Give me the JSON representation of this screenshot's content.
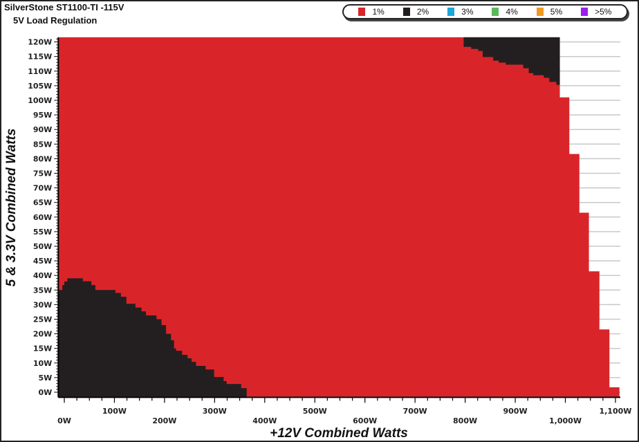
{
  "header": {
    "title": "SilverStone ST1100-TI -115V",
    "subtitle": "5V Load Regulation"
  },
  "legend": [
    {
      "label": "1%",
      "color": "#d9252a"
    },
    {
      "label": "2%",
      "color": "#231f20"
    },
    {
      "label": "3%",
      "color": "#1ea6d9"
    },
    {
      "label": "4%",
      "color": "#5cb85c"
    },
    {
      "label": "5%",
      "color": "#ef9a22"
    },
    {
      "label": ">5%",
      "color": "#9b1ff0"
    }
  ],
  "chart_data": {
    "type": "heatmap",
    "title": "SilverStone ST1100-TI -115V",
    "subtitle": "5V Load Regulation",
    "xlabel": "+12V Combined Watts",
    "ylabel": "5 & 3.3V Combined Watts",
    "xlim": [
      -12,
      1115
    ],
    "ylim": [
      -1.5,
      121.6
    ],
    "grid": "horizontal every 5W",
    "legend_placement": "top-right",
    "x_ticks": [
      "0W",
      "100W",
      "200W",
      "300W",
      "400W",
      "500W",
      "600W",
      "700W",
      "800W",
      "900W",
      "1,000W",
      "1,100W"
    ],
    "x_tick_values": [
      0,
      100,
      200,
      300,
      400,
      500,
      600,
      700,
      800,
      900,
      1000,
      1100
    ],
    "y_ticks": [
      "0W",
      "5W",
      "10W",
      "15W",
      "20W",
      "25W",
      "30W",
      "35W",
      "40W",
      "45W",
      "50W",
      "55W",
      "60W",
      "65W",
      "70W",
      "75W",
      "80W",
      "85W",
      "90W",
      "95W",
      "100W",
      "105W",
      "110W",
      "115W",
      "120W"
    ],
    "y_tick_values": [
      0,
      5,
      10,
      15,
      20,
      25,
      30,
      35,
      40,
      45,
      50,
      55,
      60,
      65,
      70,
      75,
      80,
      85,
      90,
      95,
      100,
      105,
      110,
      115,
      120
    ],
    "tested_region_max_5v_by_12v": [
      [
        -12,
        121.6
      ],
      [
        989,
        101
      ],
      [
        1008,
        81.6
      ],
      [
        1028,
        61.5
      ],
      [
        1047,
        41.4
      ],
      [
        1068,
        21.5
      ],
      [
        1088,
        1.7
      ],
      [
        1108,
        -1.5
      ]
    ],
    "regions": [
      {
        "category": "2%",
        "description": "low 12V load, low 5V load",
        "upper_step_boundary": [
          [
            -12,
            35
          ],
          [
            -4,
            36.7
          ],
          [
            0,
            37.9
          ],
          [
            6,
            39
          ],
          [
            37,
            38
          ],
          [
            54,
            36.7
          ],
          [
            62,
            35
          ],
          [
            102,
            34
          ],
          [
            113,
            32.7
          ],
          [
            124,
            30.3
          ],
          [
            142,
            29
          ],
          [
            154,
            27.7
          ],
          [
            163,
            26.3
          ],
          [
            184,
            25
          ],
          [
            194,
            23
          ],
          [
            203,
            20
          ],
          [
            213,
            17.8
          ],
          [
            219,
            15
          ],
          [
            223,
            14.2
          ],
          [
            235,
            12.8
          ],
          [
            246,
            11.6
          ],
          [
            254,
            10.4
          ],
          [
            263,
            9
          ],
          [
            282,
            7.8
          ],
          [
            299,
            5.2
          ],
          [
            318,
            3.8
          ],
          [
            324,
            2.8
          ],
          [
            353,
            1.4
          ],
          [
            364,
            -1.5
          ]
        ]
      },
      {
        "category": "2%",
        "description": "high 12V load, high 5V load",
        "lower_step_boundary": [
          [
            797,
            118.3
          ],
          [
            812,
            117.6
          ],
          [
            826,
            116.9
          ],
          [
            835,
            114.8
          ],
          [
            856,
            113.6
          ],
          [
            867,
            112.9
          ],
          [
            881,
            112.2
          ],
          [
            916,
            111
          ],
          [
            927,
            109.3
          ],
          [
            936,
            108.6
          ],
          [
            957,
            107.7
          ],
          [
            968,
            106.3
          ],
          [
            982,
            105.3
          ],
          [
            989,
            105.3
          ]
        ]
      },
      {
        "category": "1%",
        "description": "remainder of tested region"
      }
    ]
  }
}
